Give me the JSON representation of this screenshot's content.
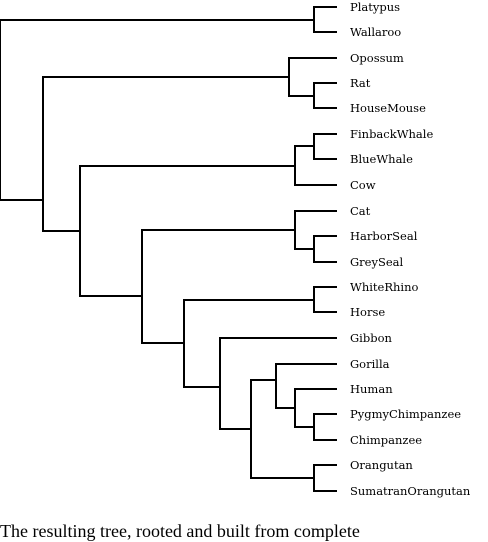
{
  "leaves": [
    "Platypus",
    "Wallaroo",
    "Opossum",
    "Rat",
    "HouseMouse",
    "FinbackWhale",
    "BlueWhale",
    "Cow",
    "Cat",
    "HarborSeal",
    "GreySeal",
    "WhiteRhino",
    "Horse",
    "Gibbon",
    "Gorilla",
    "Human",
    "PygmyChimpanzee",
    "Chimpanzee",
    "Orangutan",
    "SumatranOrangutan"
  ],
  "caption": "The resulting tree, rooted and built from complete"
}
